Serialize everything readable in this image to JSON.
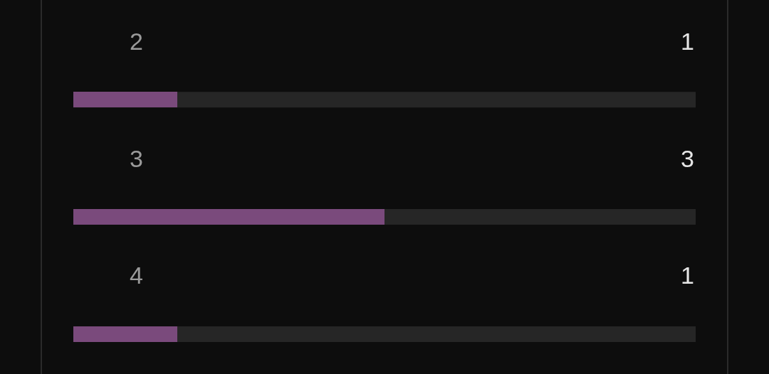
{
  "chart_data": {
    "type": "bar",
    "orientation": "horizontal",
    "categories": [
      "2",
      "3",
      "4"
    ],
    "values": [
      1,
      3,
      1
    ],
    "color": "#7a4a7c",
    "xlim": [
      0,
      6
    ],
    "data_labels": true,
    "tick_labels": false,
    "grid": false,
    "legend": false
  }
}
